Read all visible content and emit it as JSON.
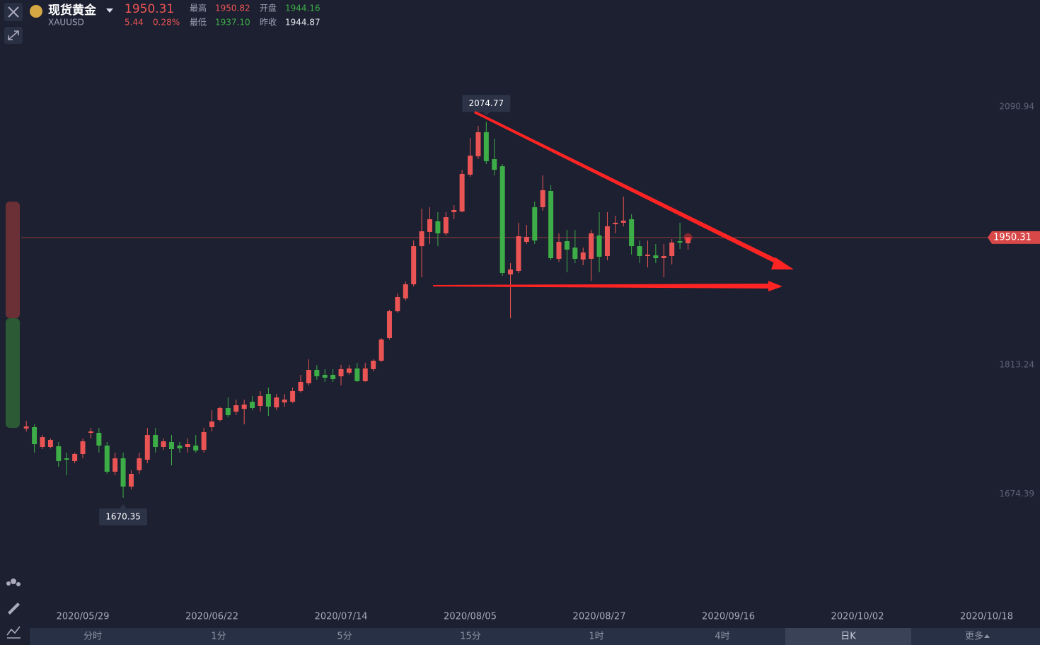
{
  "header": {
    "name": "现货黄金",
    "symbol": "XAUUSD",
    "price": "1950.31",
    "change": "5.44",
    "change_pct": "0.28%",
    "high_label": "最高",
    "high": "1950.82",
    "open_label": "开盘",
    "open": "1944.16",
    "low_label": "最低",
    "low": "1937.10",
    "prev_close_label": "昨收",
    "prev_close": "1944.87"
  },
  "tabs": {
    "items": [
      "分时",
      "1分",
      "5分",
      "15分",
      "1时",
      "4时",
      "日K",
      "更多"
    ],
    "selected": 6
  },
  "chart_data": {
    "type": "candlestick",
    "up_color": "#eb5454",
    "down_color": "#3dad47",
    "ylim": [
      1551.53,
      2167.78
    ],
    "yticks": [
      1674.39,
      1813.24,
      2090.94
    ],
    "categories": [
      null,
      null,
      null,
      null,
      null,
      null,
      null,
      "2020/05/29",
      null,
      null,
      null,
      null,
      null,
      null,
      null,
      null,
      null,
      null,
      null,
      null,
      null,
      null,
      null,
      "2020/06/22",
      null,
      null,
      null,
      null,
      null,
      null,
      null,
      null,
      null,
      null,
      null,
      null,
      null,
      null,
      null,
      "2020/07/14",
      null,
      null,
      null,
      null,
      null,
      null,
      null,
      null,
      null,
      null,
      null,
      null,
      null,
      null,
      null,
      "2020/08/05",
      null,
      null,
      null,
      null,
      null,
      null,
      null,
      null,
      null,
      null,
      null,
      null,
      null,
      null,
      null,
      "2020/08/27",
      null,
      null,
      null,
      null,
      null,
      null,
      null,
      null,
      null,
      null,
      null,
      null,
      null,
      null,
      null,
      "2020/09/16",
      null,
      null,
      null,
      null,
      null,
      null,
      null,
      null,
      null,
      null,
      null,
      null,
      null,
      null,
      null,
      "2020/10/02",
      null,
      null,
      null,
      null,
      null,
      null,
      null,
      null,
      null,
      null,
      null,
      null,
      null,
      null,
      null,
      "2020/10/18",
      null
    ],
    "open": [
      1744.8,
      1746.3,
      1725.0,
      1725.0,
      1725.8,
      1712.8,
      1709.8,
      1717.4,
      1740.2,
      1740.2,
      1726.5,
      1698.4,
      1712.8,
      1682.4,
      1699.9,
      1711.3,
      1737.9,
      1725.0,
      1730.3,
      1726.5,
      1725.0,
      1726.5,
      1721.9,
      1746.3,
      1753.9,
      1766.8,
      1763.0,
      1766.0,
      1773.7,
      1769.1,
      1782.0,
      1767.6,
      1772.9,
      1773.7,
      1785.1,
      1793.5,
      1807.9,
      1802.6,
      1802.6,
      1801.0,
      1804.9,
      1809.4,
      1795.8,
      1808.7,
      1817.8,
      1842.2,
      1871.0,
      1884.8,
      1900.0,
      1941.0,
      1956.3,
      1967.7,
      1954.8,
      1977.6,
      1978.3,
      2017.9,
      2037.7,
      2063.6,
      2034.6,
      2027.0,
      1910.6,
      1914.4,
      1945.6,
      1982.9,
      1982.9,
      2000.4,
      1927.4,
      1946.4,
      1939.5,
      1926.6,
      1927.4,
      1952.5,
      1930.4,
      1964.6,
      1966.2,
      1970.0,
      1941.0,
      1930.4,
      1931.1,
      1928.1,
      1930.4,
      1946.4,
      1944.16,
      null,
      null,
      null,
      null,
      null,
      null,
      null,
      null,
      null,
      null,
      null,
      null,
      null,
      null,
      null,
      null,
      null,
      null,
      null,
      null,
      null,
      null,
      null,
      null,
      null,
      null,
      null,
      null,
      null,
      null,
      null,
      null,
      null,
      null,
      null,
      null,
      null,
      null
    ],
    "high": [
      1753.1,
      1749.3,
      1737.9,
      1734.1,
      1730.3,
      1718.9,
      1718.9,
      1734.1,
      1745.5,
      1745.5,
      1730.3,
      1718.9,
      1718.9,
      1699.9,
      1718.9,
      1745.5,
      1745.5,
      1734.1,
      1737.9,
      1730.3,
      1734.1,
      1737.9,
      1745.5,
      1764.5,
      1768.4,
      1778.3,
      1776.0,
      1776.0,
      1779.8,
      1785.1,
      1788.9,
      1782.0,
      1782.0,
      1788.9,
      1802.6,
      1819.3,
      1813.0,
      1808.7,
      1808.7,
      1813.3,
      1813.3,
      1815.5,
      1815.5,
      1819.3,
      1842.2,
      1872.6,
      1890.1,
      1903.0,
      1947.1,
      1981.4,
      1982.9,
      1977.6,
      1977.6,
      1985.2,
      2023.2,
      2057.5,
      2070.4,
      2074.77,
      2056.7,
      2029.3,
      1922.8,
      1966.2,
      1963.9,
      1989.0,
      2017.1,
      2006.5,
      1954.8,
      1958.6,
      1958.6,
      1939.5,
      1958.6,
      1977.6,
      1977.6,
      1973.8,
      1994.3,
      1975.3,
      1947.1,
      1947.1,
      1943.3,
      1943.3,
      1948.7,
      1966.2,
      1950.82,
      null,
      null,
      null,
      null,
      null,
      null,
      null,
      null,
      null,
      null,
      null,
      null,
      null,
      null,
      null,
      null,
      null,
      null,
      null,
      null,
      null,
      null,
      null,
      null,
      null,
      null,
      null,
      null,
      null,
      null,
      null,
      null,
      null,
      null,
      null,
      null,
      null,
      null
    ],
    "low": [
      1741.7,
      1718.9,
      1722.7,
      1723.5,
      1703.7,
      1694.6,
      1707.5,
      1712.8,
      1734.1,
      1718.9,
      1696.1,
      1694.6,
      1670.35,
      1679.3,
      1696.1,
      1707.5,
      1718.9,
      1721.9,
      1705.2,
      1718.9,
      1718.9,
      1718.9,
      1718.9,
      1741.7,
      1752.4,
      1757.0,
      1759.2,
      1749.3,
      1764.5,
      1763.0,
      1758.5,
      1764.5,
      1768.4,
      1772.1,
      1783.6,
      1791.2,
      1797.3,
      1795.0,
      1795.0,
      1791.2,
      1802.6,
      1795.0,
      1795.0,
      1806.4,
      1816.3,
      1840.6,
      1869.5,
      1882.5,
      1897.7,
      1907.6,
      1943.3,
      1941.0,
      1952.5,
      1970.0,
      1977.6,
      2015.6,
      2034.6,
      2029.3,
      2017.1,
      1909.1,
      1863.5,
      1912.1,
      1943.3,
      1943.3,
      1979.1,
      1925.8,
      1924.3,
      1912.9,
      1922.8,
      1920.5,
      1903.8,
      1912.9,
      1925.8,
      1954.8,
      1962.4,
      1931.9,
      1922.8,
      1918.2,
      1922.8,
      1907.6,
      1921.3,
      1938.0,
      1937.1,
      null,
      null,
      null,
      null,
      null,
      null,
      null,
      null,
      null,
      null,
      null,
      null,
      null,
      null,
      null,
      null,
      null,
      null,
      null,
      null,
      null,
      null,
      null,
      null,
      null,
      null,
      null,
      null,
      null,
      null,
      null,
      null,
      null,
      null,
      null,
      null,
      null,
      null
    ],
    "close": [
      1747.1,
      1728.0,
      1735.6,
      1732.6,
      1709.8,
      1711.3,
      1717.4,
      1731.1,
      1741.7,
      1726.5,
      1698.4,
      1712.8,
      1682.4,
      1696.1,
      1712.8,
      1737.9,
      1725.0,
      1731.1,
      1722.7,
      1723.5,
      1728.0,
      1721.2,
      1741.0,
      1752.4,
      1766.8,
      1759.2,
      1769.9,
      1770.6,
      1766.8,
      1779.8,
      1768.4,
      1778.3,
      1776.0,
      1785.1,
      1795.0,
      1807.9,
      1801.0,
      1799.5,
      1798.0,
      1808.7,
      1809.4,
      1795.8,
      1809.4,
      1817.8,
      1840.6,
      1871.0,
      1886.3,
      1900.0,
      1941.0,
      1957.0,
      1970.0,
      1954.8,
      1972.2,
      1979.9,
      2018.7,
      2038.4,
      2063.6,
      2032.4,
      2023.2,
      1912.1,
      1915.9,
      1951.7,
      1950.9,
      1947.1,
      2001.2,
      1928.1,
      1945.6,
      1937.3,
      1927.4,
      1934.2,
      1954.8,
      1929.6,
      1962.4,
      1966.2,
      1968.5,
      1941.0,
      1930.4,
      1931.9,
      1928.1,
      1930.4,
      1944.9,
      1944.87,
      1950.31,
      null,
      null,
      null,
      null,
      null,
      null,
      null,
      null,
      null,
      null,
      null,
      null,
      null,
      null,
      null,
      null,
      null,
      null,
      null,
      null,
      null,
      null,
      null,
      null,
      null,
      null,
      null,
      null,
      null,
      null,
      null,
      null,
      null,
      null,
      null,
      null,
      null,
      null
    ]
  }
}
